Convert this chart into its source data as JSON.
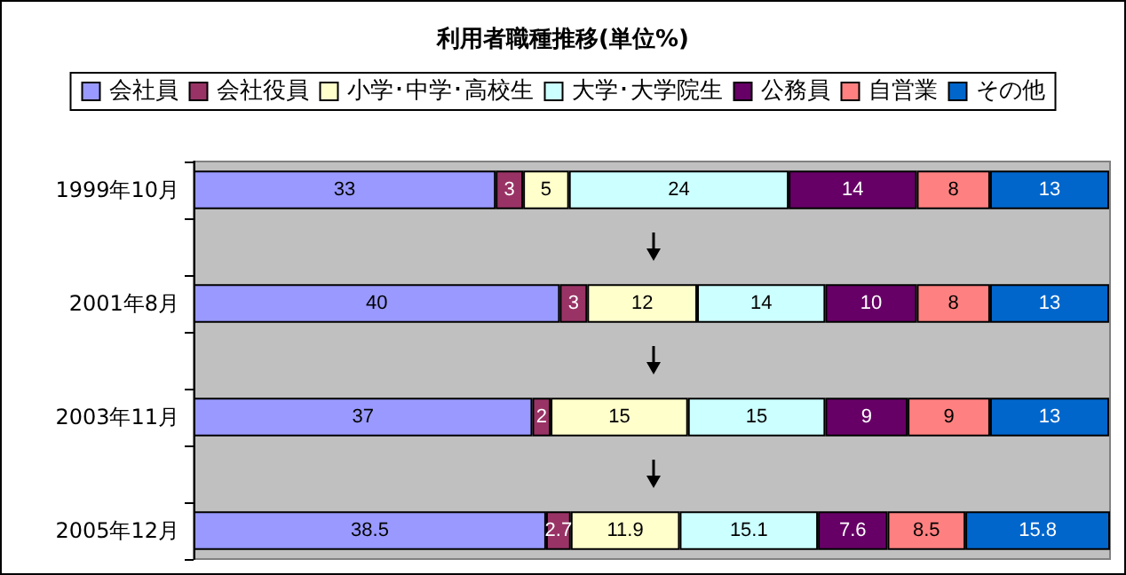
{
  "chart_data": {
    "type": "bar",
    "orientation": "horizontal",
    "stacked": true,
    "title": "利用者職種推移(単位%)",
    "legend": "top",
    "data_labels": true,
    "categories": [
      "1999年10月",
      null,
      "2001年8月",
      null,
      "2003年11月",
      null,
      "2005年12月"
    ],
    "series": [
      {
        "name": "会社員",
        "color": "#9999ff",
        "values": [
          33,
          null,
          40,
          null,
          37,
          null,
          38.5
        ]
      },
      {
        "name": "会社役員",
        "color": "#993366",
        "values": [
          3,
          null,
          3,
          null,
          2,
          null,
          2.7
        ]
      },
      {
        "name": "小学･中学･高校生",
        "color": "#ffffcc",
        "values": [
          5,
          null,
          12,
          null,
          15,
          null,
          11.9
        ]
      },
      {
        "name": "大学･大学院生",
        "color": "#ccffff",
        "values": [
          24,
          null,
          14,
          null,
          15,
          null,
          15.1
        ]
      },
      {
        "name": "公務員",
        "color": "#660066",
        "values": [
          14,
          null,
          10,
          null,
          9,
          null,
          7.6
        ]
      },
      {
        "name": "自営業",
        "color": "#ff8080",
        "values": [
          8,
          null,
          8,
          null,
          9,
          null,
          8.5
        ]
      },
      {
        "name": "その他",
        "color": "#0066cc",
        "values": [
          13,
          null,
          13,
          null,
          13,
          null,
          15.8
        ]
      }
    ]
  }
}
